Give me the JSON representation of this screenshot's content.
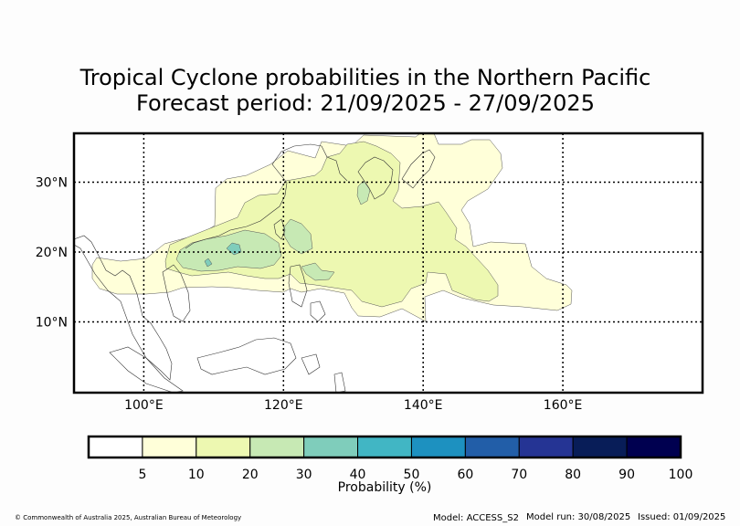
{
  "title_line1": "Tropical Cyclone probabilities in the Northern Pacific",
  "title_line2": "Forecast period: 21/09/2025 - 27/09/2025",
  "map": {
    "lon_range": [
      90,
      180
    ],
    "lat_range": [
      0,
      37
    ],
    "lon_ticks": [
      {
        "value": 100,
        "label": "100°E"
      },
      {
        "value": 120,
        "label": "120°E"
      },
      {
        "value": 140,
        "label": "140°E"
      },
      {
        "value": 160,
        "label": "160°E"
      }
    ],
    "lat_ticks": [
      {
        "value": 10,
        "label": "10°N"
      },
      {
        "value": 20,
        "label": "20°N"
      },
      {
        "value": 30,
        "label": "30°N"
      }
    ],
    "gridlines": "dotted"
  },
  "colorbar": {
    "label": "Probability (%)",
    "tick_labels": [
      "5",
      "10",
      "20",
      "30",
      "40",
      "50",
      "60",
      "70",
      "80",
      "90",
      "100"
    ],
    "bins": [
      {
        "range": "0-5",
        "color": "#ffffff"
      },
      {
        "range": "5-10",
        "color": "#ffffd9"
      },
      {
        "range": "10-20",
        "color": "#edf8b1"
      },
      {
        "range": "20-30",
        "color": "#c7e9b4"
      },
      {
        "range": "30-40",
        "color": "#7fcdbb"
      },
      {
        "range": "40-50",
        "color": "#41b6c4"
      },
      {
        "range": "50-60",
        "color": "#1d91c0"
      },
      {
        "range": "60-70",
        "color": "#225ea8"
      },
      {
        "range": "70-80",
        "color": "#253494"
      },
      {
        "range": "80-90",
        "color": "#081d58"
      },
      {
        "range": "90-100",
        "color": "#000050"
      }
    ]
  },
  "footer": {
    "copyright": "© Commonwealth of Australia 2025, Australian Bureau of Meteorology",
    "model": "Model: ACCESS_S2",
    "model_run": "Model run: 30/08/2025",
    "issued": "Issued: 01/09/2025"
  }
}
